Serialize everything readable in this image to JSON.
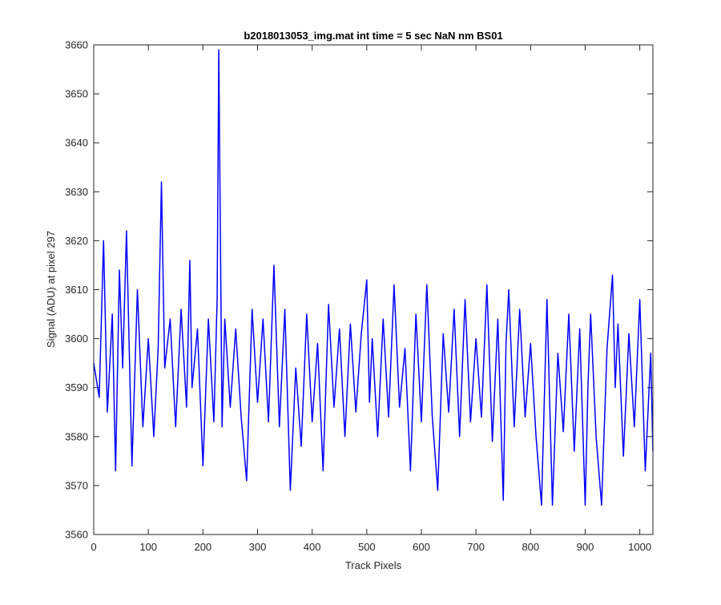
{
  "chart_data": {
    "type": "line",
    "title": "b2018013053_img.mat int time = 5 sec  NaN nm BS01",
    "xlabel": "Track Pixels",
    "ylabel": "Signal (ADU) at pixel 297",
    "xlim": [
      0,
      1024
    ],
    "ylim": [
      3560,
      3660
    ],
    "x_ticks": [
      0,
      100,
      200,
      300,
      400,
      500,
      600,
      700,
      800,
      900,
      1000
    ],
    "y_ticks": [
      3560,
      3570,
      3580,
      3590,
      3600,
      3610,
      3620,
      3630,
      3640,
      3650,
      3660
    ],
    "grid": false,
    "series": [
      {
        "color": "#0000ff",
        "x": [
          0,
          10,
          18,
          25,
          34,
          40,
          47,
          53,
          60,
          70,
          80,
          90,
          100,
          110,
          118,
          124,
          130,
          140,
          150,
          160,
          170,
          176,
          180,
          190,
          200,
          210,
          220,
          226,
          229,
          235,
          240,
          250,
          260,
          270,
          280,
          290,
          300,
          310,
          320,
          330,
          340,
          350,
          360,
          370,
          380,
          390,
          400,
          410,
          420,
          430,
          440,
          450,
          460,
          470,
          480,
          490,
          500,
          505,
          510,
          520,
          530,
          540,
          550,
          560,
          570,
          580,
          590,
          600,
          610,
          620,
          630,
          640,
          650,
          660,
          670,
          680,
          690,
          700,
          710,
          720,
          730,
          740,
          750,
          755,
          760,
          770,
          780,
          790,
          800,
          810,
          820,
          830,
          840,
          850,
          860,
          870,
          880,
          890,
          900,
          905,
          910,
          920,
          930,
          940,
          950,
          955,
          960,
          970,
          980,
          990,
          1000,
          1010,
          1020,
          1024
        ],
        "y": [
          3595,
          3588,
          3620,
          3585,
          3605,
          3573,
          3614,
          3594,
          3622,
          3574,
          3610,
          3582,
          3600,
          3580,
          3598,
          3632,
          3594,
          3604,
          3582,
          3606,
          3586,
          3616,
          3590,
          3602,
          3574,
          3604,
          3583,
          3608,
          3659,
          3582,
          3604,
          3586,
          3602,
          3584,
          3571,
          3606,
          3587,
          3604,
          3583,
          3615,
          3582,
          3606,
          3569,
          3594,
          3578,
          3605,
          3583,
          3599,
          3573,
          3607,
          3586,
          3602,
          3580,
          3603,
          3585,
          3601,
          3612,
          3587,
          3600,
          3580,
          3604,
          3584,
          3611,
          3586,
          3598,
          3573,
          3605,
          3583,
          3611,
          3584,
          3569,
          3601,
          3585,
          3606,
          3580,
          3608,
          3583,
          3600,
          3584,
          3611,
          3579,
          3604,
          3567,
          3599,
          3610,
          3582,
          3606,
          3584,
          3599,
          3580,
          3566,
          3608,
          3566,
          3597,
          3581,
          3605,
          3577,
          3602,
          3566,
          3590,
          3605,
          3580,
          3566,
          3598,
          3613,
          3590,
          3603,
          3576,
          3601,
          3582,
          3608,
          3573,
          3597,
          3577
        ]
      }
    ]
  }
}
